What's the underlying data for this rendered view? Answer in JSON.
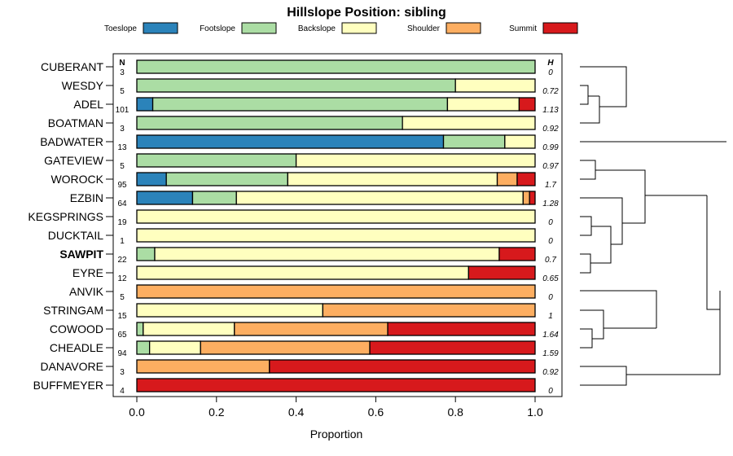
{
  "chart_data": {
    "type": "bar",
    "orientation": "horizontal",
    "stacked": true,
    "title": "Hillslope Position: sibling",
    "xlabel": "Proportion",
    "xlim": [
      0,
      1
    ],
    "xticks": [
      "0.0",
      "0.2",
      "0.4",
      "0.6",
      "0.8",
      "1.0"
    ],
    "n_header": "N",
    "h_header": "H",
    "bold_category": "SAWPIT",
    "categories": [
      "CUBERANT",
      "WESDY",
      "ADEL",
      "BOATMAN",
      "BADWATER",
      "GATEVIEW",
      "WOROCK",
      "EZBIN",
      "KEGSPRINGS",
      "DUCKTAIL",
      "SAWPIT",
      "EYRE",
      "ANVIK",
      "STRINGAM",
      "COWOOD",
      "CHEADLE",
      "DANAVORE",
      "BUFFMEYER"
    ],
    "n": [
      "3",
      "5",
      "101",
      "3",
      "13",
      "5",
      "95",
      "64",
      "19",
      "1",
      "22",
      "12",
      "5",
      "15",
      "65",
      "94",
      "3",
      "4"
    ],
    "h": [
      "0",
      "0.72",
      "1.13",
      "0.92",
      "0.99",
      "0.97",
      "1.7",
      "1.28",
      "0",
      "0",
      "0.7",
      "0.65",
      "0",
      "1",
      "1.64",
      "1.59",
      "0.92",
      "0"
    ],
    "series": [
      {
        "name": "Toeslope",
        "color": "#2b83ba",
        "values": [
          0,
          0,
          0.04,
          0,
          0.77,
          0,
          0.074,
          0.14,
          0,
          0,
          0,
          0,
          0,
          0,
          0,
          0,
          0,
          0
        ]
      },
      {
        "name": "Footslope",
        "color": "#abdda4",
        "values": [
          1.0,
          0.8,
          0.74,
          0.667,
          0.154,
          0.4,
          0.305,
          0.11,
          0,
          0,
          0.045,
          0,
          0,
          0,
          0.016,
          0.032,
          0,
          0
        ]
      },
      {
        "name": "Backslope",
        "color": "#ffffbf",
        "values": [
          0,
          0.2,
          0.18,
          0.333,
          0.076,
          0.6,
          0.526,
          0.72,
          1.0,
          1.0,
          0.865,
          0.833,
          0,
          0.467,
          0.229,
          0.128,
          0,
          0
        ]
      },
      {
        "name": "Shoulder",
        "color": "#fdae61",
        "values": [
          0,
          0,
          0,
          0,
          0,
          0,
          0.05,
          0.016,
          0,
          0,
          0,
          0,
          1.0,
          0.533,
          0.385,
          0.425,
          0.333,
          0
        ]
      },
      {
        "name": "Summit",
        "color": "#d7191c",
        "values": [
          0,
          0,
          0.04,
          0,
          0,
          0,
          0.045,
          0.014,
          0,
          0,
          0.09,
          0.167,
          0,
          0,
          0.37,
          0.415,
          0.667,
          1.0
        ]
      }
    ]
  }
}
